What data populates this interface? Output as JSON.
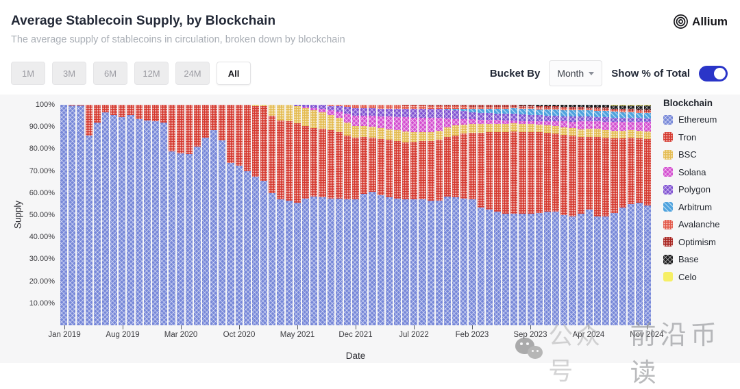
{
  "header": {
    "title": "Average Stablecoin Supply, by Blockchain",
    "subtitle": "The average supply of stablecoins in circulation, broken down by blockchain",
    "brand": "Allium"
  },
  "controls": {
    "range_buttons": [
      {
        "label": "1M",
        "selected": false
      },
      {
        "label": "3M",
        "selected": false
      },
      {
        "label": "6M",
        "selected": false
      },
      {
        "label": "12M",
        "selected": false
      },
      {
        "label": "24M",
        "selected": false
      },
      {
        "label": "All",
        "selected": true
      }
    ],
    "bucket_by_label": "Bucket By",
    "bucket_value": "Month",
    "toggle_label": "Show % of Total",
    "toggle_on": true,
    "accent_color": "#2a35c8"
  },
  "watermark": {
    "text_1": "公众号",
    "text_2": "前沿币读"
  },
  "chart_data": {
    "type": "bar",
    "stacked": true,
    "percent_of_total": true,
    "ylabel": "Supply",
    "xlabel": "Date",
    "ylim": [
      0,
      100
    ],
    "grid": true,
    "legend_title": "Blockchain",
    "legend_position": "right",
    "y_ticks": [
      "100%",
      "90.00%",
      "80.00%",
      "70.00%",
      "60.00%",
      "50.00%",
      "40.00%",
      "30.00%",
      "20.00%",
      "10.00%"
    ],
    "x_tick_labels": [
      "Jan 2019",
      "Aug 2019",
      "Mar 2020",
      "Oct 2020",
      "May 2021",
      "Dec 2021",
      "Jul 2022",
      "Feb 2023",
      "Sep 2023",
      "Apr 2024",
      "Nov 2024"
    ],
    "x_tick_every": 7,
    "n_bars": 71,
    "x_range": [
      "Jan 2019",
      "Nov 2024"
    ],
    "bucket": "Month",
    "series": [
      {
        "name": "Ethereum",
        "color": "#7687d8",
        "pattern": "cross",
        "values": [
          99.9,
          99.8,
          99.7,
          86,
          92,
          96.5,
          95.5,
          94.5,
          95.5,
          93.5,
          93,
          92.5,
          92,
          79,
          78,
          77.5,
          81,
          85,
          88.5,
          84,
          73.5,
          72.5,
          70,
          67.5,
          65.5,
          60,
          57,
          56.5,
          55.5,
          57.5,
          58.5,
          58,
          57.5,
          57.5,
          57,
          57,
          59.5,
          60.5,
          59,
          58,
          57.5,
          57,
          57,
          57,
          56.5,
          56.5,
          58.5,
          58,
          57.5,
          57,
          53.5,
          52.5,
          51.5,
          50.5,
          50.5,
          50.5,
          50.5,
          51,
          51.5,
          51.5,
          50,
          49.5,
          50.5,
          52.5,
          49.5,
          49.5,
          51,
          53.5,
          55,
          55.5,
          54.5
        ]
      },
      {
        "name": "Tron",
        "color": "#d53a30",
        "pattern": "dots",
        "values": [
          0.1,
          0.2,
          0.3,
          14,
          8,
          3.5,
          4.5,
          5.5,
          4.5,
          6.5,
          7,
          7.5,
          8,
          21,
          22,
          22.5,
          19,
          15,
          11.5,
          16,
          26.5,
          27.5,
          30,
          32,
          34,
          35,
          36,
          36,
          36,
          33,
          31,
          31,
          31,
          30,
          29,
          28,
          26,
          24.5,
          25.5,
          26.2,
          26,
          26,
          26.2,
          26.5,
          27.1,
          27.8,
          26.9,
          28.1,
          29.4,
          30.2,
          33.7,
          35,
          36.1,
          37.2,
          37.4,
          37.1,
          37.2,
          36.5,
          35.8,
          35.5,
          36.4,
          36.4,
          34.9,
          33,
          36,
          35.6,
          33.8,
          31.3,
          30,
          29.3,
          29.9
        ]
      },
      {
        "name": "BSC",
        "color": "#e4bc52",
        "pattern": "dots",
        "values": [
          0,
          0,
          0,
          0,
          0,
          0,
          0,
          0,
          0,
          0,
          0,
          0,
          0,
          0,
          0,
          0,
          0,
          0,
          0,
          0,
          0,
          0,
          0,
          0.5,
          0.5,
          5,
          7,
          7.5,
          8,
          8,
          8,
          7.5,
          7,
          6.5,
          6,
          5.5,
          5,
          5,
          4.8,
          4.5,
          5,
          4.8,
          4.5,
          4.2,
          4,
          3.8,
          4.5,
          4.5,
          4.2,
          4,
          4,
          3.8,
          3.8,
          3.7,
          3.6,
          3.6,
          3.5,
          3.5,
          3.5,
          3.5,
          3.5,
          3.5,
          3.5,
          3.5,
          3.5,
          3.5,
          3.5,
          3.5,
          3.4,
          3.4,
          3.4
        ]
      },
      {
        "name": "Solana",
        "color": "#d44fd0",
        "pattern": "cross",
        "values": [
          0,
          0,
          0,
          0,
          0,
          0,
          0,
          0,
          0,
          0,
          0,
          0,
          0,
          0,
          0,
          0,
          0,
          0,
          0,
          0,
          0,
          0,
          0,
          0,
          0,
          0,
          0,
          0,
          0,
          0.5,
          1,
          1.5,
          2,
          3,
          4,
          4.5,
          4.5,
          5,
          5.5,
          6,
          6,
          6.5,
          6.5,
          6.5,
          6.5,
          6,
          4,
          3,
          2.5,
          2.2,
          2,
          1.8,
          1.7,
          1.6,
          1.5,
          1.5,
          1.5,
          1.6,
          1.8,
          2,
          2.5,
          3,
          3.5,
          3.5,
          3.5,
          3.8,
          4,
          4,
          4,
          4.2,
          4.5
        ]
      },
      {
        "name": "Polygon",
        "color": "#8053d2",
        "pattern": "cross",
        "values": [
          0,
          0,
          0,
          0,
          0,
          0,
          0,
          0,
          0,
          0,
          0,
          0,
          0,
          0,
          0,
          0,
          0,
          0,
          0,
          0,
          0,
          0,
          0,
          0,
          0,
          0,
          0,
          0,
          0.5,
          1,
          1.5,
          2,
          2,
          2.5,
          3,
          3.5,
          3.5,
          3.5,
          3.5,
          3.5,
          3.8,
          4,
          4,
          4,
          4,
          4,
          3.8,
          3.8,
          3.5,
          3.3,
          3.2,
          3.2,
          3,
          3,
          3,
          2.9,
          2.8,
          2.7,
          2.6,
          2.5,
          2.4,
          2.3,
          2.2,
          2.1,
          2,
          2,
          1.9,
          1.8,
          1.7,
          1.6,
          1.6
        ]
      },
      {
        "name": "Arbitrum",
        "color": "#4fa3de",
        "pattern": "diag",
        "values": [
          0,
          0,
          0,
          0,
          0,
          0,
          0,
          0,
          0,
          0,
          0,
          0,
          0,
          0,
          0,
          0,
          0,
          0,
          0,
          0,
          0,
          0,
          0,
          0,
          0,
          0,
          0,
          0,
          0,
          0,
          0,
          0,
          0,
          0,
          0,
          0,
          0,
          0,
          0,
          0,
          0,
          0,
          0,
          0,
          0,
          0,
          0.5,
          0.8,
          1.2,
          1.5,
          1.8,
          2,
          2.2,
          2.3,
          2.4,
          2.5,
          2.5,
          2.6,
          2.6,
          2.7,
          2.8,
          2.8,
          2.8,
          2.8,
          2.8,
          2.8,
          2.7,
          2.6,
          2.5,
          2.4,
          2.4
        ]
      },
      {
        "name": "Avalanche",
        "color": "#e25849",
        "pattern": "dots",
        "values": [
          0,
          0,
          0,
          0,
          0,
          0,
          0,
          0,
          0,
          0,
          0,
          0,
          0,
          0,
          0,
          0,
          0,
          0,
          0,
          0,
          0,
          0,
          0,
          0,
          0,
          0,
          0,
          0,
          0,
          0,
          0,
          0,
          0.5,
          0.5,
          1,
          1.5,
          1.5,
          1.5,
          1.7,
          1.8,
          1.7,
          1.5,
          1.5,
          1.4,
          1.4,
          1.3,
          1.2,
          1.1,
          1,
          1,
          1,
          0.9,
          0.9,
          0.9,
          0.8,
          0.8,
          0.8,
          0.8,
          0.8,
          0.8,
          0.8,
          0.8,
          0.8,
          0.7,
          0.7,
          0.7,
          0.7,
          0.7,
          0.7,
          0.7,
          0.7
        ]
      },
      {
        "name": "Optimism",
        "color": "#a82420",
        "pattern": "dots",
        "values": [
          0,
          0,
          0,
          0,
          0,
          0,
          0,
          0,
          0,
          0,
          0,
          0,
          0,
          0,
          0,
          0,
          0,
          0,
          0,
          0,
          0,
          0,
          0,
          0,
          0,
          0,
          0,
          0,
          0,
          0,
          0,
          0,
          0,
          0,
          0,
          0,
          0,
          0,
          0,
          0,
          0,
          0.2,
          0.3,
          0.4,
          0.5,
          0.6,
          0.6,
          0.7,
          0.7,
          0.8,
          0.8,
          0.8,
          0.8,
          0.8,
          0.8,
          0.8,
          0.8,
          0.8,
          0.8,
          0.8,
          0.8,
          0.8,
          0.8,
          0.8,
          0.8,
          0.8,
          0.7,
          0.7,
          0.7,
          0.7,
          0.7
        ]
      },
      {
        "name": "Base",
        "color": "#1d1d1f",
        "pattern": "cross",
        "values": [
          0,
          0,
          0,
          0,
          0,
          0,
          0,
          0,
          0,
          0,
          0,
          0,
          0,
          0,
          0,
          0,
          0,
          0,
          0,
          0,
          0,
          0,
          0,
          0,
          0,
          0,
          0,
          0,
          0,
          0,
          0,
          0,
          0,
          0,
          0,
          0,
          0,
          0,
          0,
          0,
          0,
          0,
          0,
          0,
          0,
          0,
          0,
          0,
          0,
          0,
          0,
          0,
          0,
          0,
          0,
          0.3,
          0.4,
          0.5,
          0.6,
          0.7,
          0.8,
          0.9,
          1,
          1.1,
          1.2,
          1.3,
          1.4,
          1.5,
          1.6,
          1.8,
          1.9
        ]
      },
      {
        "name": "Celo",
        "color": "#f6ef66",
        "pattern": "solid",
        "values": [
          0,
          0,
          0,
          0,
          0,
          0,
          0,
          0,
          0,
          0,
          0,
          0,
          0,
          0,
          0,
          0,
          0,
          0,
          0,
          0,
          0,
          0,
          0,
          0,
          0,
          0,
          0,
          0,
          0,
          0,
          0,
          0,
          0,
          0,
          0,
          0,
          0,
          0,
          0,
          0,
          0,
          0,
          0,
          0,
          0,
          0,
          0,
          0,
          0,
          0,
          0,
          0,
          0,
          0,
          0,
          0,
          0,
          0,
          0,
          0,
          0,
          0,
          0,
          0,
          0,
          0,
          0.3,
          0.4,
          0.4,
          0.4,
          0.4
        ]
      }
    ]
  }
}
